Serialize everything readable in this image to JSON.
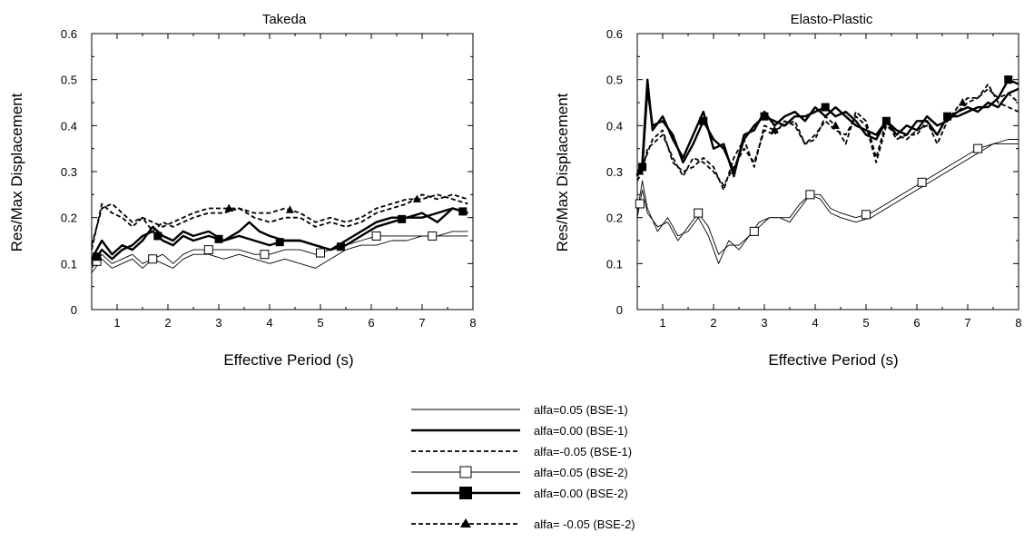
{
  "chart_data": [
    {
      "type": "line",
      "title": "Takeda",
      "xlabel": "Effective Period (s)",
      "ylabel": "Res/Max Displacement",
      "xlim": [
        0.5,
        8
      ],
      "ylim": [
        0,
        0.6
      ],
      "xticks": [
        "1",
        "2",
        "3",
        "4",
        "5",
        "6",
        "7",
        "8"
      ],
      "yticks": [
        "0",
        "0.1",
        "0.2",
        "0.3",
        "0.4",
        "0.5",
        "0.6"
      ],
      "series": [
        {
          "name": "alfa=0.05 (BSE-1)",
          "x": [
            0.5,
            0.7,
            0.9,
            1.1,
            1.3,
            1.5,
            1.7,
            1.9,
            2.1,
            2.3,
            2.5,
            2.8,
            3.1,
            3.4,
            3.7,
            4.0,
            4.3,
            4.6,
            4.9,
            5.2,
            5.5,
            5.8,
            6.1,
            6.4,
            6.7,
            7.0,
            7.3,
            7.6,
            7.9
          ],
          "y": [
            0.08,
            0.11,
            0.09,
            0.1,
            0.11,
            0.09,
            0.11,
            0.1,
            0.09,
            0.11,
            0.12,
            0.12,
            0.11,
            0.12,
            0.11,
            0.1,
            0.11,
            0.1,
            0.09,
            0.11,
            0.13,
            0.14,
            0.14,
            0.15,
            0.15,
            0.16,
            0.16,
            0.16,
            0.16
          ]
        },
        {
          "name": "alfa=0.00 (BSE-1)",
          "x": [
            0.5,
            0.7,
            0.9,
            1.1,
            1.3,
            1.5,
            1.7,
            1.9,
            2.1,
            2.3,
            2.5,
            2.8,
            3.1,
            3.4,
            3.6,
            3.8,
            4.0,
            4.3,
            4.6,
            4.9,
            5.2,
            5.5,
            5.8,
            6.1,
            6.4,
            6.7,
            7.0,
            7.3,
            7.6,
            7.9
          ],
          "y": [
            0.11,
            0.15,
            0.12,
            0.14,
            0.13,
            0.15,
            0.18,
            0.16,
            0.15,
            0.17,
            0.16,
            0.17,
            0.15,
            0.17,
            0.19,
            0.17,
            0.16,
            0.15,
            0.15,
            0.14,
            0.13,
            0.15,
            0.17,
            0.19,
            0.2,
            0.2,
            0.21,
            0.19,
            0.22,
            0.21
          ]
        },
        {
          "name": "alfa=-0.05 (BSE-1)",
          "x": [
            0.5,
            0.7,
            0.9,
            1.1,
            1.3,
            1.5,
            1.7,
            1.9,
            2.1,
            2.3,
            2.5,
            2.8,
            3.1,
            3.4,
            3.7,
            4.0,
            4.3,
            4.6,
            4.9,
            5.2,
            5.5,
            5.8,
            6.1,
            6.4,
            6.7,
            7.0,
            7.3,
            7.6,
            7.9
          ],
          "y": [
            0.13,
            0.23,
            0.21,
            0.2,
            0.18,
            0.2,
            0.17,
            0.19,
            0.18,
            0.19,
            0.2,
            0.21,
            0.21,
            0.22,
            0.2,
            0.19,
            0.2,
            0.2,
            0.18,
            0.19,
            0.18,
            0.19,
            0.21,
            0.22,
            0.23,
            0.25,
            0.24,
            0.25,
            0.24
          ]
        },
        {
          "name": "alfa=0.05 (BSE-2)",
          "x": [
            0.5,
            0.7,
            0.9,
            1.1,
            1.3,
            1.5,
            1.7,
            1.9,
            2.1,
            2.3,
            2.5,
            2.8,
            3.1,
            3.4,
            3.7,
            4.0,
            4.3,
            4.6,
            4.9,
            5.2,
            5.5,
            5.8,
            6.1,
            6.4,
            6.7,
            7.0,
            7.3,
            7.6,
            7.9
          ],
          "y": [
            0.09,
            0.12,
            0.1,
            0.11,
            0.12,
            0.1,
            0.11,
            0.12,
            0.1,
            0.12,
            0.13,
            0.13,
            0.13,
            0.13,
            0.12,
            0.12,
            0.13,
            0.13,
            0.12,
            0.13,
            0.14,
            0.15,
            0.16,
            0.16,
            0.16,
            0.16,
            0.16,
            0.17,
            0.17
          ]
        },
        {
          "name": "alfa=0.00 (BSE-2)",
          "x": [
            0.5,
            0.7,
            0.9,
            1.1,
            1.3,
            1.5,
            1.7,
            1.9,
            2.1,
            2.3,
            2.5,
            2.8,
            3.1,
            3.4,
            3.7,
            4.0,
            4.3,
            4.6,
            4.9,
            5.2,
            5.5,
            5.8,
            6.1,
            6.4,
            6.7,
            7.0,
            7.3,
            7.6,
            7.9
          ],
          "y": [
            0.1,
            0.13,
            0.11,
            0.13,
            0.14,
            0.16,
            0.17,
            0.15,
            0.14,
            0.16,
            0.15,
            0.16,
            0.15,
            0.16,
            0.15,
            0.14,
            0.15,
            0.15,
            0.14,
            0.13,
            0.14,
            0.16,
            0.18,
            0.19,
            0.2,
            0.2,
            0.21,
            0.22,
            0.21
          ]
        },
        {
          "name": "alfa= -0.05 (BSE-2)",
          "x": [
            0.5,
            0.7,
            0.9,
            1.1,
            1.3,
            1.5,
            1.7,
            1.9,
            2.1,
            2.3,
            2.5,
            2.8,
            3.1,
            3.4,
            3.7,
            4.0,
            4.3,
            4.6,
            4.9,
            5.2,
            5.5,
            5.8,
            6.1,
            6.4,
            6.7,
            7.0,
            7.3,
            7.6,
            7.9
          ],
          "y": [
            0.14,
            0.22,
            0.23,
            0.21,
            0.19,
            0.2,
            0.19,
            0.18,
            0.19,
            0.2,
            0.21,
            0.22,
            0.22,
            0.22,
            0.21,
            0.21,
            0.22,
            0.21,
            0.19,
            0.2,
            0.19,
            0.2,
            0.22,
            0.23,
            0.24,
            0.24,
            0.25,
            0.24,
            0.23
          ]
        }
      ],
      "markers": [
        {
          "series": 3,
          "x": [
            0.6,
            1.7,
            2.8,
            3.9,
            5.0,
            6.1,
            7.2
          ]
        },
        {
          "series": 4,
          "x": [
            0.6,
            1.8,
            3.0,
            4.2,
            5.4,
            6.6,
            7.8
          ]
        },
        {
          "series": 5,
          "x": [
            3.2,
            4.4,
            6.9
          ]
        }
      ]
    },
    {
      "type": "line",
      "title": "Elasto-Plastic",
      "xlabel": "Effective Period (s)",
      "ylabel": "Res/Max Displacement",
      "xlim": [
        0.5,
        8
      ],
      "ylim": [
        0,
        0.6
      ],
      "xticks": [
        "1",
        "2",
        "3",
        "4",
        "5",
        "6",
        "7",
        "8"
      ],
      "yticks": [
        "0",
        "0.1",
        "0.2",
        "0.3",
        "0.4",
        "0.5",
        "0.6"
      ],
      "series": [
        {
          "name": "alfa=0.05 (BSE-1)",
          "x": [
            0.5,
            0.6,
            0.7,
            0.9,
            1.1,
            1.3,
            1.5,
            1.7,
            1.9,
            2.1,
            2.3,
            2.5,
            2.7,
            2.9,
            3.1,
            3.3,
            3.5,
            3.7,
            3.9,
            4.1,
            4.3,
            4.5,
            4.8,
            5.1,
            5.4,
            5.7,
            6.0,
            6.3,
            6.6,
            6.9,
            7.2,
            7.5,
            7.8,
            8.0
          ],
          "y": [
            0.21,
            0.28,
            0.22,
            0.17,
            0.2,
            0.16,
            0.17,
            0.2,
            0.16,
            0.1,
            0.15,
            0.13,
            0.16,
            0.19,
            0.2,
            0.2,
            0.19,
            0.22,
            0.25,
            0.24,
            0.21,
            0.2,
            0.19,
            0.2,
            0.22,
            0.24,
            0.26,
            0.28,
            0.3,
            0.32,
            0.34,
            0.36,
            0.36,
            0.36
          ]
        },
        {
          "name": "alfa=0.00 (BSE-1)",
          "x": [
            0.5,
            0.6,
            0.7,
            0.8,
            1.0,
            1.2,
            1.4,
            1.6,
            1.8,
            2.0,
            2.2,
            2.4,
            2.6,
            2.8,
            3.0,
            3.2,
            3.4,
            3.6,
            3.8,
            4.0,
            4.2,
            4.4,
            4.6,
            4.8,
            5.0,
            5.2,
            5.4,
            5.6,
            5.8,
            6.0,
            6.2,
            6.4,
            6.6,
            6.8,
            7.0,
            7.2,
            7.4,
            7.6,
            7.8,
            8.0
          ],
          "y": [
            0.29,
            0.32,
            0.5,
            0.39,
            0.42,
            0.37,
            0.33,
            0.38,
            0.43,
            0.35,
            0.36,
            0.29,
            0.38,
            0.39,
            0.43,
            0.4,
            0.42,
            0.43,
            0.41,
            0.44,
            0.42,
            0.44,
            0.42,
            0.4,
            0.39,
            0.38,
            0.41,
            0.38,
            0.4,
            0.39,
            0.42,
            0.4,
            0.41,
            0.43,
            0.44,
            0.43,
            0.45,
            0.44,
            0.47,
            0.48
          ]
        },
        {
          "name": "alfa=-0.05 (BSE-1)",
          "x": [
            0.5,
            0.6,
            0.7,
            0.8,
            1.0,
            1.2,
            1.4,
            1.6,
            1.8,
            2.0,
            2.2,
            2.4,
            2.6,
            2.8,
            3.0,
            3.2,
            3.4,
            3.6,
            3.8,
            4.0,
            4.2,
            4.4,
            4.6,
            4.8,
            5.0,
            5.2,
            5.4,
            5.6,
            5.8,
            6.0,
            6.2,
            6.4,
            6.6,
            6.8,
            7.0,
            7.2,
            7.4,
            7.6,
            7.8,
            8.0
          ],
          "y": [
            0.28,
            0.3,
            0.35,
            0.36,
            0.38,
            0.33,
            0.29,
            0.33,
            0.32,
            0.3,
            0.27,
            0.31,
            0.35,
            0.32,
            0.39,
            0.38,
            0.41,
            0.4,
            0.36,
            0.38,
            0.41,
            0.39,
            0.38,
            0.42,
            0.4,
            0.32,
            0.4,
            0.38,
            0.37,
            0.39,
            0.4,
            0.38,
            0.42,
            0.43,
            0.45,
            0.46,
            0.49,
            0.45,
            0.44,
            0.43
          ]
        },
        {
          "name": "alfa=0.05 (BSE-2)",
          "x": [
            0.5,
            0.6,
            0.7,
            0.9,
            1.1,
            1.3,
            1.5,
            1.7,
            1.9,
            2.1,
            2.3,
            2.5,
            2.7,
            2.9,
            3.1,
            3.3,
            3.5,
            3.7,
            3.9,
            4.1,
            4.3,
            4.5,
            4.8,
            5.1,
            5.4,
            5.7,
            6.0,
            6.3,
            6.6,
            6.9,
            7.2,
            7.5,
            7.8,
            8.0
          ],
          "y": [
            0.2,
            0.26,
            0.21,
            0.18,
            0.19,
            0.15,
            0.18,
            0.21,
            0.18,
            0.12,
            0.14,
            0.14,
            0.16,
            0.18,
            0.2,
            0.2,
            0.2,
            0.23,
            0.25,
            0.25,
            0.22,
            0.21,
            0.2,
            0.21,
            0.23,
            0.25,
            0.27,
            0.29,
            0.31,
            0.33,
            0.35,
            0.36,
            0.37,
            0.37
          ]
        },
        {
          "name": "alfa=0.00 (BSE-2)",
          "x": [
            0.5,
            0.6,
            0.7,
            0.8,
            1.0,
            1.2,
            1.4,
            1.6,
            1.8,
            2.0,
            2.2,
            2.4,
            2.6,
            2.8,
            3.0,
            3.2,
            3.4,
            3.6,
            3.8,
            4.0,
            4.2,
            4.4,
            4.6,
            4.8,
            5.0,
            5.2,
            5.4,
            5.6,
            5.8,
            6.0,
            6.2,
            6.4,
            6.6,
            6.8,
            7.0,
            7.2,
            7.4,
            7.6,
            7.8,
            8.0
          ],
          "y": [
            0.3,
            0.31,
            0.48,
            0.4,
            0.41,
            0.38,
            0.32,
            0.36,
            0.41,
            0.37,
            0.35,
            0.3,
            0.37,
            0.4,
            0.42,
            0.41,
            0.4,
            0.42,
            0.42,
            0.43,
            0.44,
            0.42,
            0.43,
            0.41,
            0.38,
            0.37,
            0.41,
            0.39,
            0.38,
            0.41,
            0.41,
            0.38,
            0.42,
            0.42,
            0.43,
            0.44,
            0.44,
            0.46,
            0.5,
            0.49
          ]
        },
        {
          "name": "alfa= -0.05 (BSE-2)",
          "x": [
            0.5,
            0.6,
            0.7,
            0.8,
            1.0,
            1.2,
            1.4,
            1.6,
            1.8,
            2.0,
            2.2,
            2.4,
            2.6,
            2.8,
            3.0,
            3.2,
            3.4,
            3.6,
            3.8,
            4.0,
            4.2,
            4.4,
            4.6,
            4.8,
            5.0,
            5.2,
            5.4,
            5.6,
            5.8,
            6.0,
            6.2,
            6.4,
            6.6,
            6.8,
            7.0,
            7.2,
            7.4,
            7.6,
            7.8,
            8.0
          ],
          "y": [
            0.29,
            0.31,
            0.34,
            0.37,
            0.39,
            0.32,
            0.3,
            0.31,
            0.33,
            0.31,
            0.26,
            0.33,
            0.37,
            0.31,
            0.4,
            0.39,
            0.4,
            0.41,
            0.36,
            0.37,
            0.42,
            0.4,
            0.36,
            0.43,
            0.41,
            0.33,
            0.41,
            0.37,
            0.38,
            0.38,
            0.41,
            0.36,
            0.41,
            0.44,
            0.46,
            0.46,
            0.48,
            0.46,
            0.47,
            0.45
          ]
        }
      ],
      "markers": [
        {
          "series": 3,
          "x": [
            0.55,
            1.7,
            2.8,
            3.9,
            5.0,
            6.1,
            7.2
          ]
        },
        {
          "series": 4,
          "x": [
            0.6,
            1.8,
            3.0,
            4.2,
            5.4,
            6.6,
            7.8
          ]
        },
        {
          "series": 5,
          "x": [
            0.55,
            3.2,
            4.4,
            6.9
          ]
        }
      ]
    }
  ],
  "legend": {
    "placement": "bottom-center",
    "entries": [
      {
        "label": "alfa=0.05 (BSE-1)"
      },
      {
        "label": "alfa=0.00 (BSE-1)"
      },
      {
        "label": "alfa=-0.05 (BSE-1)"
      },
      {
        "label": "alfa=0.05 (BSE-2)"
      },
      {
        "label": "alfa=0.00 (BSE-2)"
      },
      {
        "label": "alfa= -0.05 (BSE-2)"
      }
    ]
  },
  "colors": {
    "ink": "#000000",
    "background": "#ffffff"
  }
}
